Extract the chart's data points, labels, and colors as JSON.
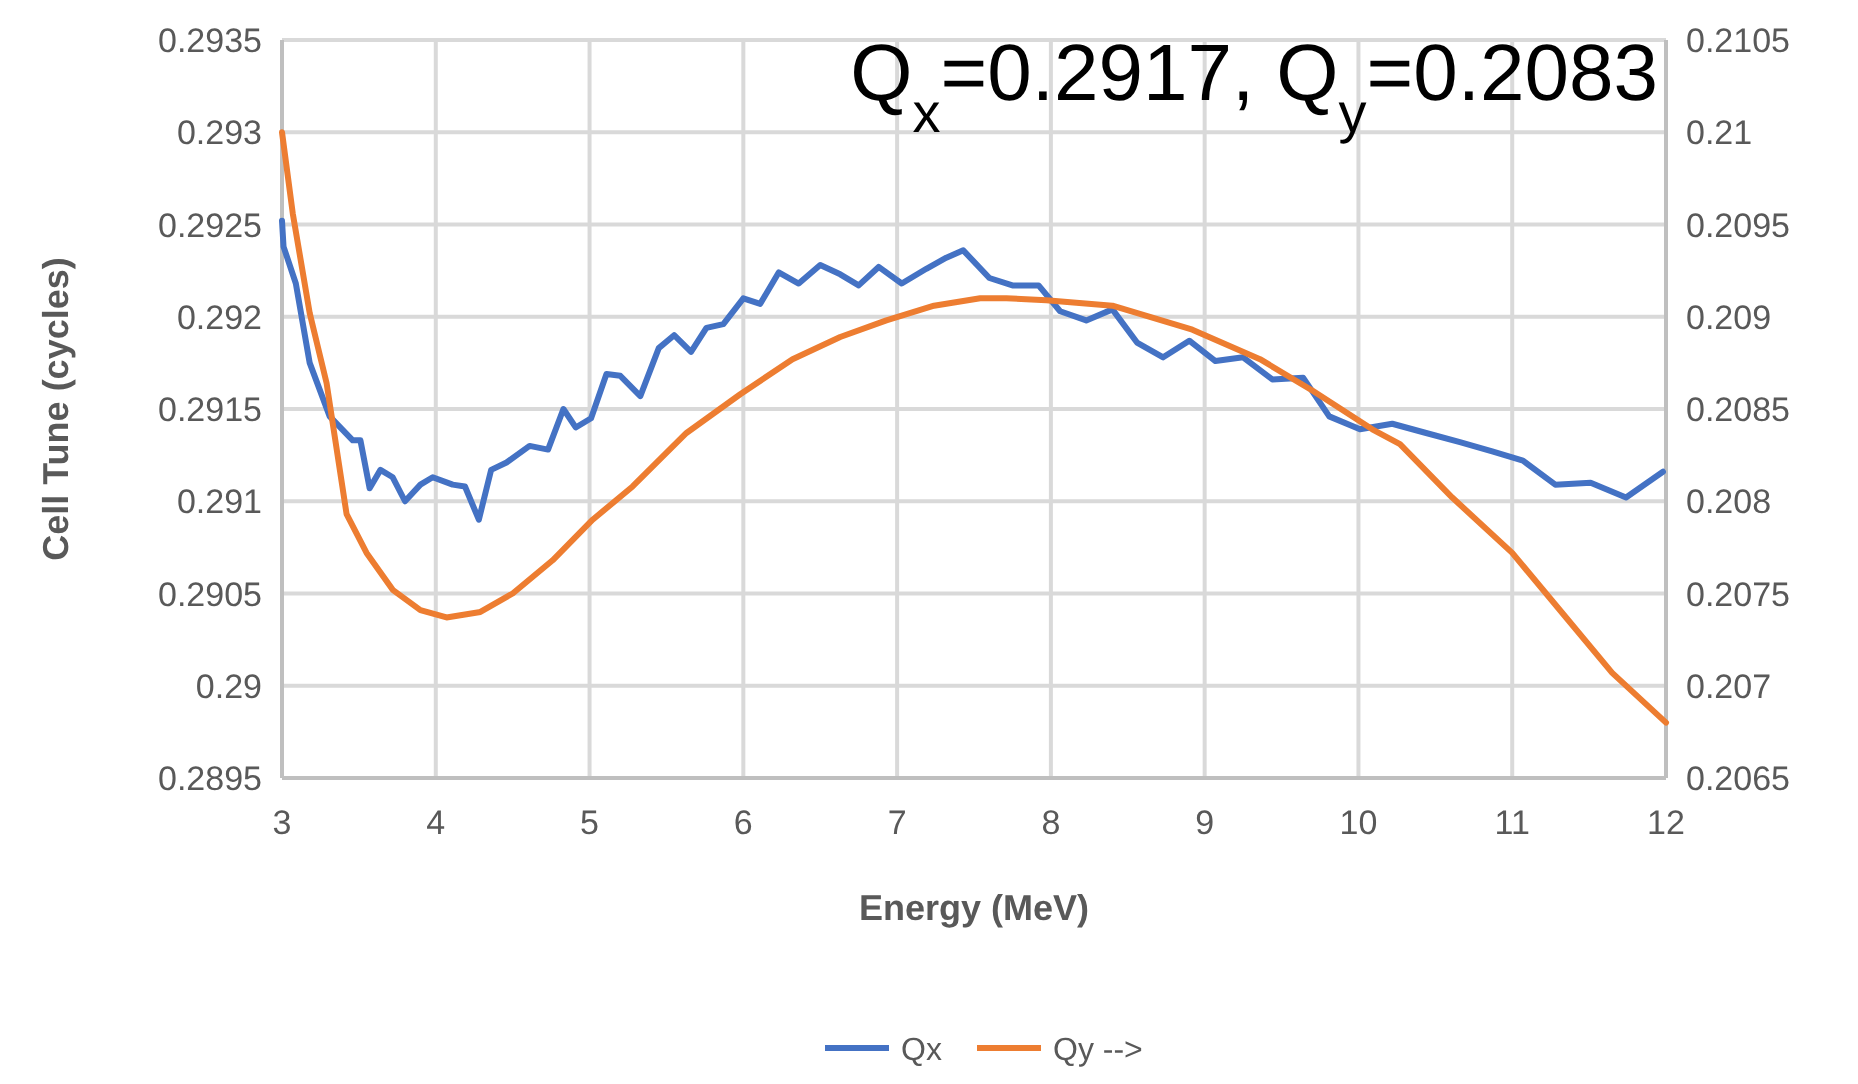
{
  "chart_data": {
    "type": "line",
    "title": "Q$_{x}$=0.2917, Q$_{y}$=0.2083",
    "xlabel": "Energy (MeV)",
    "ylabel": "Cell Tune (cycles)",
    "xlim": [
      3,
      12
    ],
    "xticks": [
      3,
      4,
      5,
      6,
      7,
      8,
      9,
      10,
      11,
      12
    ],
    "ylim": [
      0.2895,
      0.2935
    ],
    "yticks": [
      0.2895,
      0.29,
      0.2905,
      0.291,
      0.2915,
      0.292,
      0.2925,
      0.293,
      0.2935
    ],
    "y2lim": [
      0.2065,
      0.2105
    ],
    "y2ticks": [
      0.2065,
      0.207,
      0.2075,
      0.208,
      0.2085,
      0.209,
      0.2095,
      0.21,
      0.2105
    ],
    "grid": true,
    "legend": "bottom",
    "marker": "none",
    "line_style": "solid",
    "series": [
      {
        "name": "Qx",
        "color": "#4472c4",
        "x": [
          3,
          3.01,
          3.09,
          3.18,
          3.31,
          3.46,
          3.51,
          3.57,
          3.64,
          3.72,
          3.8,
          3.9,
          3.98,
          4.11,
          4.19,
          4.28,
          4.36,
          4.46,
          4.61,
          4.73,
          4.83,
          4.91,
          5.01,
          5.11,
          5.2,
          5.33,
          5.45,
          5.55,
          5.66,
          5.76,
          5.87,
          6,
          6.11,
          6.23,
          6.36,
          6.5,
          6.63,
          6.75,
          6.88,
          7.03,
          7.19,
          7.32,
          7.43,
          7.6,
          7.75,
          7.92,
          8.06,
          8.23,
          8.4,
          8.56,
          8.73,
          8.9,
          9.07,
          9.25,
          9.44,
          9.64,
          9.81,
          10.01,
          10.22,
          10.44,
          10.66,
          10.87,
          11.07,
          11.28,
          11.51,
          11.74,
          11.98
        ],
        "values": [
          0.29252,
          0.29238,
          0.29218,
          0.29175,
          0.29146,
          0.29133,
          0.29133,
          0.29107,
          0.29117,
          0.29113,
          0.291,
          0.29109,
          0.29113,
          0.29109,
          0.29108,
          0.2909,
          0.29117,
          0.29121,
          0.2913,
          0.29128,
          0.2915,
          0.2914,
          0.29145,
          0.29169,
          0.29168,
          0.29157,
          0.29183,
          0.2919,
          0.29181,
          0.29194,
          0.29196,
          0.2921,
          0.29207,
          0.29224,
          0.29218,
          0.29228,
          0.29223,
          0.29217,
          0.29227,
          0.29218,
          0.29226,
          0.29232,
          0.29236,
          0.29221,
          0.29217,
          0.29217,
          0.29203,
          0.29198,
          0.29204,
          0.29186,
          0.29178,
          0.29187,
          0.29176,
          0.29178,
          0.29166,
          0.29167,
          0.29146,
          0.29139,
          0.29142,
          0.29137,
          0.29132,
          0.29127,
          0.29122,
          0.29109,
          0.2911,
          0.29102,
          0.29116
        ]
      },
      {
        "name": "Qy -->",
        "color": "#ed7d31",
        "axis": "y2",
        "x": [
          3,
          3.07,
          3.18,
          3.29,
          3.42,
          3.55,
          3.72,
          3.9,
          4.07,
          4.29,
          4.5,
          4.76,
          5.02,
          5.28,
          5.63,
          5.98,
          6.32,
          6.63,
          6.93,
          7.24,
          7.54,
          7.71,
          7.97,
          8.4,
          8.92,
          9.36,
          9.7,
          10.09,
          10.27,
          10.61,
          11,
          11.35,
          11.65,
          12
        ],
        "values": [
          0.21,
          0.20956,
          0.20902,
          0.20864,
          0.20793,
          0.20772,
          0.20752,
          0.20741,
          0.20737,
          0.2074,
          0.2075,
          0.20768,
          0.2079,
          0.20808,
          0.20837,
          0.20858,
          0.20877,
          0.20889,
          0.20898,
          0.20906,
          0.2091,
          0.2091,
          0.20909,
          0.20906,
          0.20893,
          0.20877,
          0.2086,
          0.20839,
          0.20831,
          0.20802,
          0.20772,
          0.20737,
          0.20707,
          0.2068
        ]
      }
    ]
  }
}
